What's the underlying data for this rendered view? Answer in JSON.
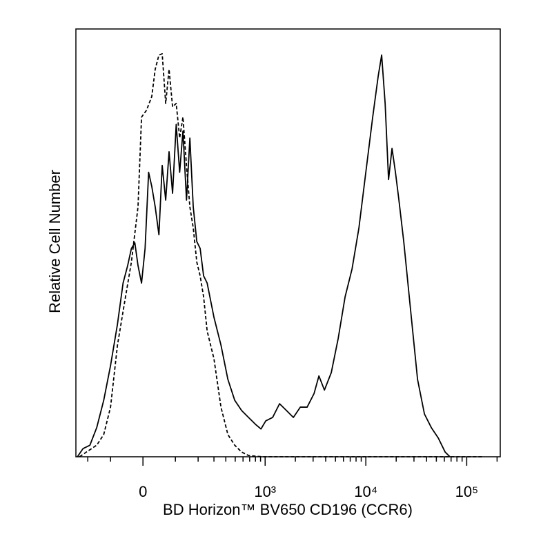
{
  "chart_data": {
    "type": "line",
    "x_label": "BD Horizon™ BV650 CD196 (CCR6)",
    "y_label": "Relative Cell Number",
    "xscale": "biexponential",
    "xlim": [
      -272,
      215000
    ],
    "xticks": [
      0,
      {
        "value": 1000,
        "label": "10³"
      },
      {
        "value": 10000,
        "label": "10⁴"
      },
      {
        "value": 100000,
        "label": "10⁵"
      }
    ],
    "xminorticks": [
      -200,
      -100,
      100,
      200,
      300,
      400,
      500,
      600,
      700,
      800,
      900,
      2000,
      3000,
      4000,
      5000,
      6000,
      7000,
      8000,
      9000,
      20000,
      30000,
      40000,
      50000,
      60000,
      70000,
      80000,
      90000,
      200000
    ],
    "ylim": [
      0,
      100
    ],
    "series": [
      {
        "color": "#000000",
        "line_style": "solid",
        "x": [
          -262,
          -227,
          -189,
          -156,
          -126,
          -100,
          -76,
          -58,
          -44,
          -33,
          -23,
          -14,
          -4,
          6,
          16,
          25,
          35,
          46,
          56,
          67,
          78,
          90,
          103,
          116,
          129,
          144,
          159,
          175,
          193,
          211,
          231,
          253,
          300,
          356,
          420,
          494,
          581,
          682,
          800,
          909,
          1015,
          1189,
          1393,
          1633,
          1911,
          2238,
          2618,
          3068,
          3425,
          3885,
          4547,
          5323,
          6230,
          7299,
          8540,
          9997,
          11695,
          13264,
          14351,
          15536,
          16796,
          18179,
          19661,
          21279,
          23761,
          27800,
          32555,
          38100,
          44620,
          52216,
          61133,
          68234
        ],
        "values": [
          0,
          1.9,
          2.7,
          6.8,
          13.2,
          21.3,
          31,
          40.6,
          44.7,
          48.7,
          50,
          44.7,
          40.6,
          48.7,
          66.5,
          63.2,
          58.4,
          51.9,
          68.1,
          60,
          71.3,
          61.6,
          77.7,
          66.5,
          76.1,
          60,
          74.5,
          58.4,
          50.3,
          48.7,
          42.3,
          40.6,
          32.6,
          26.1,
          18.1,
          13.2,
          10.8,
          9.2,
          7.6,
          6.5,
          8.4,
          9.2,
          12.4,
          10.8,
          9.2,
          11.6,
          11.6,
          14.8,
          18.9,
          15.6,
          19.7,
          27.7,
          37.4,
          43.9,
          53.5,
          66.5,
          79.4,
          89,
          93.9,
          82.6,
          64.8,
          72.1,
          66.5,
          60,
          50.3,
          34.2,
          18.1,
          10,
          6.8,
          4.4,
          1.1,
          0
        ]
      },
      {
        "color": "#000000",
        "line_style": "dashed",
        "x": [
          -248,
          -208,
          -156,
          -126,
          -100,
          -76,
          -54,
          -33,
          -14,
          -4,
          10,
          25,
          35,
          46,
          56,
          67,
          78,
          90,
          103,
          116,
          129,
          144,
          159,
          175,
          193,
          211,
          231,
          253,
          300,
          356,
          420,
          494,
          581,
          682,
          937,
          2834,
          30096,
          145500
        ],
        "values": [
          0,
          1.1,
          2.7,
          5.2,
          11.6,
          26.1,
          35.8,
          45.5,
          58.4,
          79.4,
          81,
          84.2,
          90.6,
          93.9,
          94.2,
          82.6,
          90.6,
          81.8,
          82.6,
          74.5,
          79.4,
          68.1,
          58.4,
          53.5,
          45.5,
          42.3,
          37.4,
          29.4,
          22.9,
          11.6,
          5.2,
          2.7,
          1.1,
          0.3,
          0,
          0,
          0,
          0
        ]
      }
    ]
  }
}
